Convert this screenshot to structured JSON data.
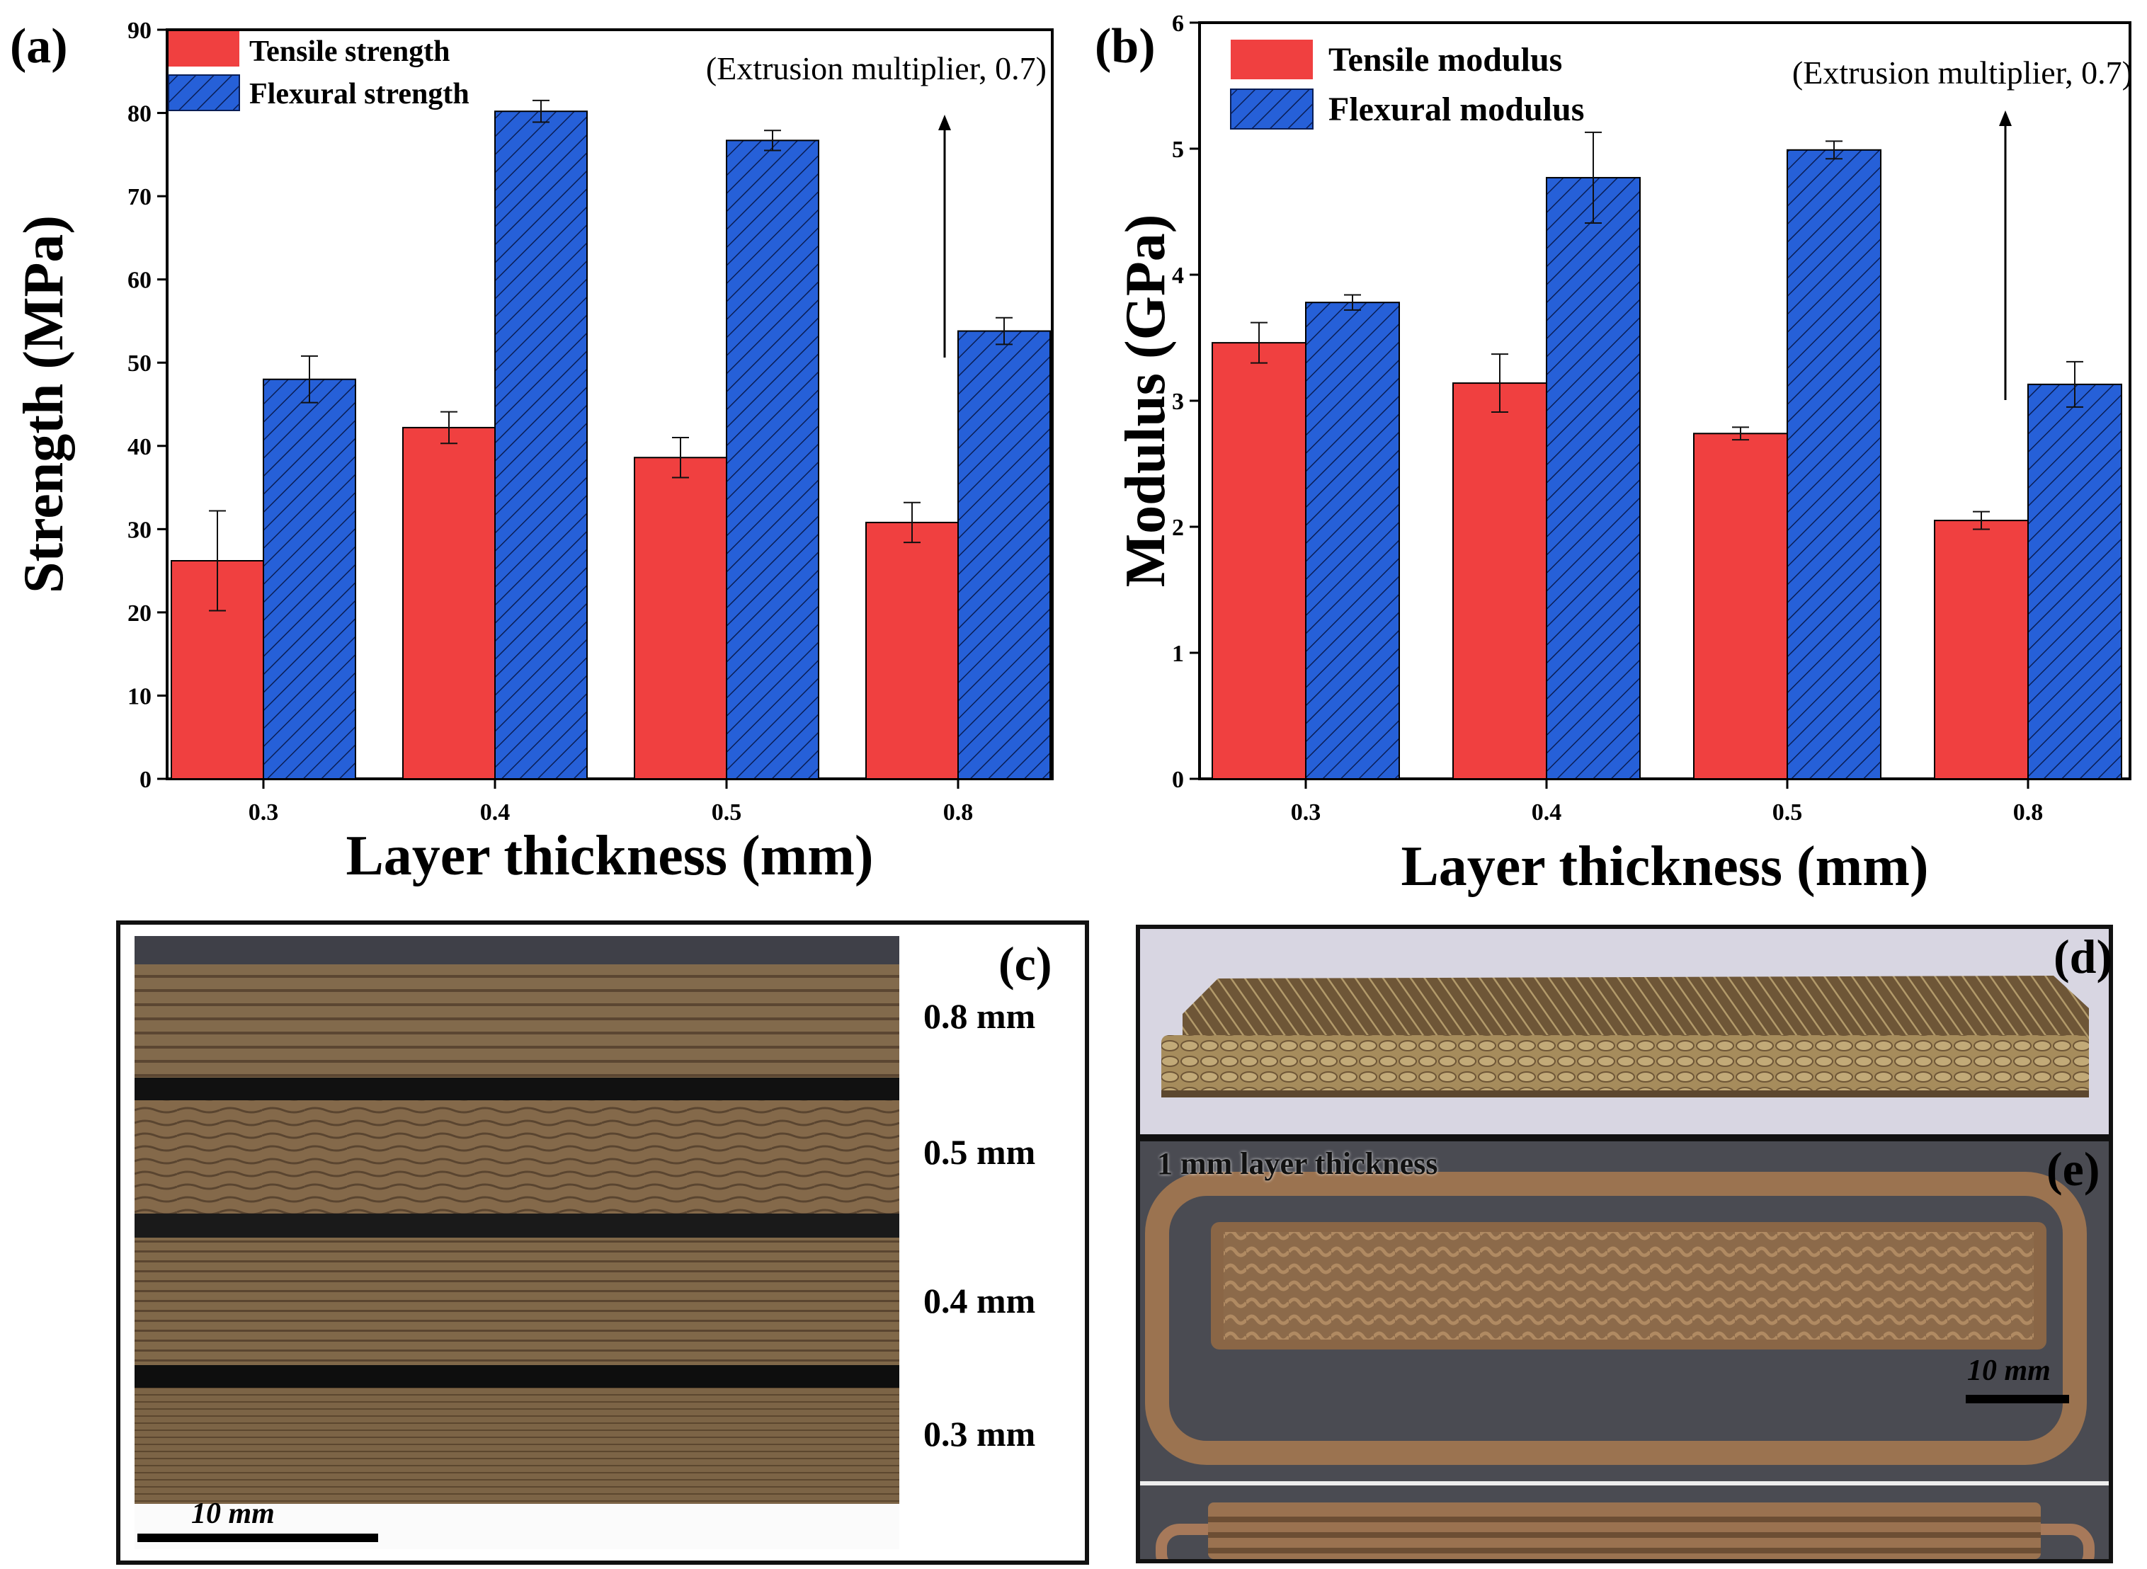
{
  "chart_data": [
    {
      "type": "bar",
      "panel": "(a)",
      "categories": [
        "0.3",
        "0.4",
        "0.5",
        "0.8"
      ],
      "series": [
        {
          "name": "Tensile strength",
          "values": [
            26.2,
            42.2,
            38.6,
            30.8
          ],
          "errors": [
            6.0,
            1.9,
            2.4,
            2.4
          ],
          "color": "#f04040",
          "pattern": "solid"
        },
        {
          "name": "Flexural strength",
          "values": [
            48.0,
            80.2,
            76.7,
            53.8
          ],
          "errors": [
            2.8,
            1.3,
            1.2,
            1.6
          ],
          "color": "#2660d8",
          "pattern": "hatch"
        }
      ],
      "xlabel": "Layer thickness (mm)",
      "ylabel": "Strength (MPa)",
      "ylim": [
        0,
        90
      ],
      "yticks": [
        0,
        10,
        20,
        30,
        40,
        50,
        60,
        70,
        80,
        90
      ],
      "annotation": "(Extrusion multiplier,  0.7)",
      "legend_position": "top-left",
      "arrow": "upward arrow above 0.8 mm tensile bar"
    },
    {
      "type": "bar",
      "panel": "(b)",
      "categories": [
        "0.3",
        "0.4",
        "0.5",
        "0.8"
      ],
      "series": [
        {
          "name": "Tensile modulus",
          "values": [
            3.46,
            3.14,
            2.74,
            2.05
          ],
          "errors": [
            0.16,
            0.23,
            0.05,
            0.07
          ],
          "color": "#f04040",
          "pattern": "solid"
        },
        {
          "name": "Flexural modulus",
          "values": [
            3.78,
            4.77,
            4.99,
            3.13
          ],
          "errors": [
            0.06,
            0.36,
            0.07,
            0.18
          ],
          "color": "#2660d8",
          "pattern": "hatch"
        }
      ],
      "xlabel": "Layer thickness (mm)",
      "ylabel": "Modulus (GPa)",
      "ylim": [
        0,
        6
      ],
      "yticks": [
        0,
        1,
        2,
        3,
        4,
        5,
        6
      ],
      "annotation": "(Extrusion multiplier,  0.7)",
      "legend_position": "top-left",
      "arrow": "upward arrow above 0.8 mm tensile bar"
    }
  ],
  "panels": {
    "c": {
      "label": "(c)",
      "layers": [
        "0.8 mm",
        "0.5 mm",
        "0.4 mm",
        "0.3 mm"
      ],
      "scale": "10 mm"
    },
    "d": {
      "label": "(d)"
    },
    "e": {
      "label": "(e)",
      "caption": "1 mm layer thickness",
      "scale": "10 mm"
    }
  },
  "colors": {
    "tensile": "#f04040",
    "flexural": "#2660d8",
    "photo_brown": "#8a6a45"
  }
}
